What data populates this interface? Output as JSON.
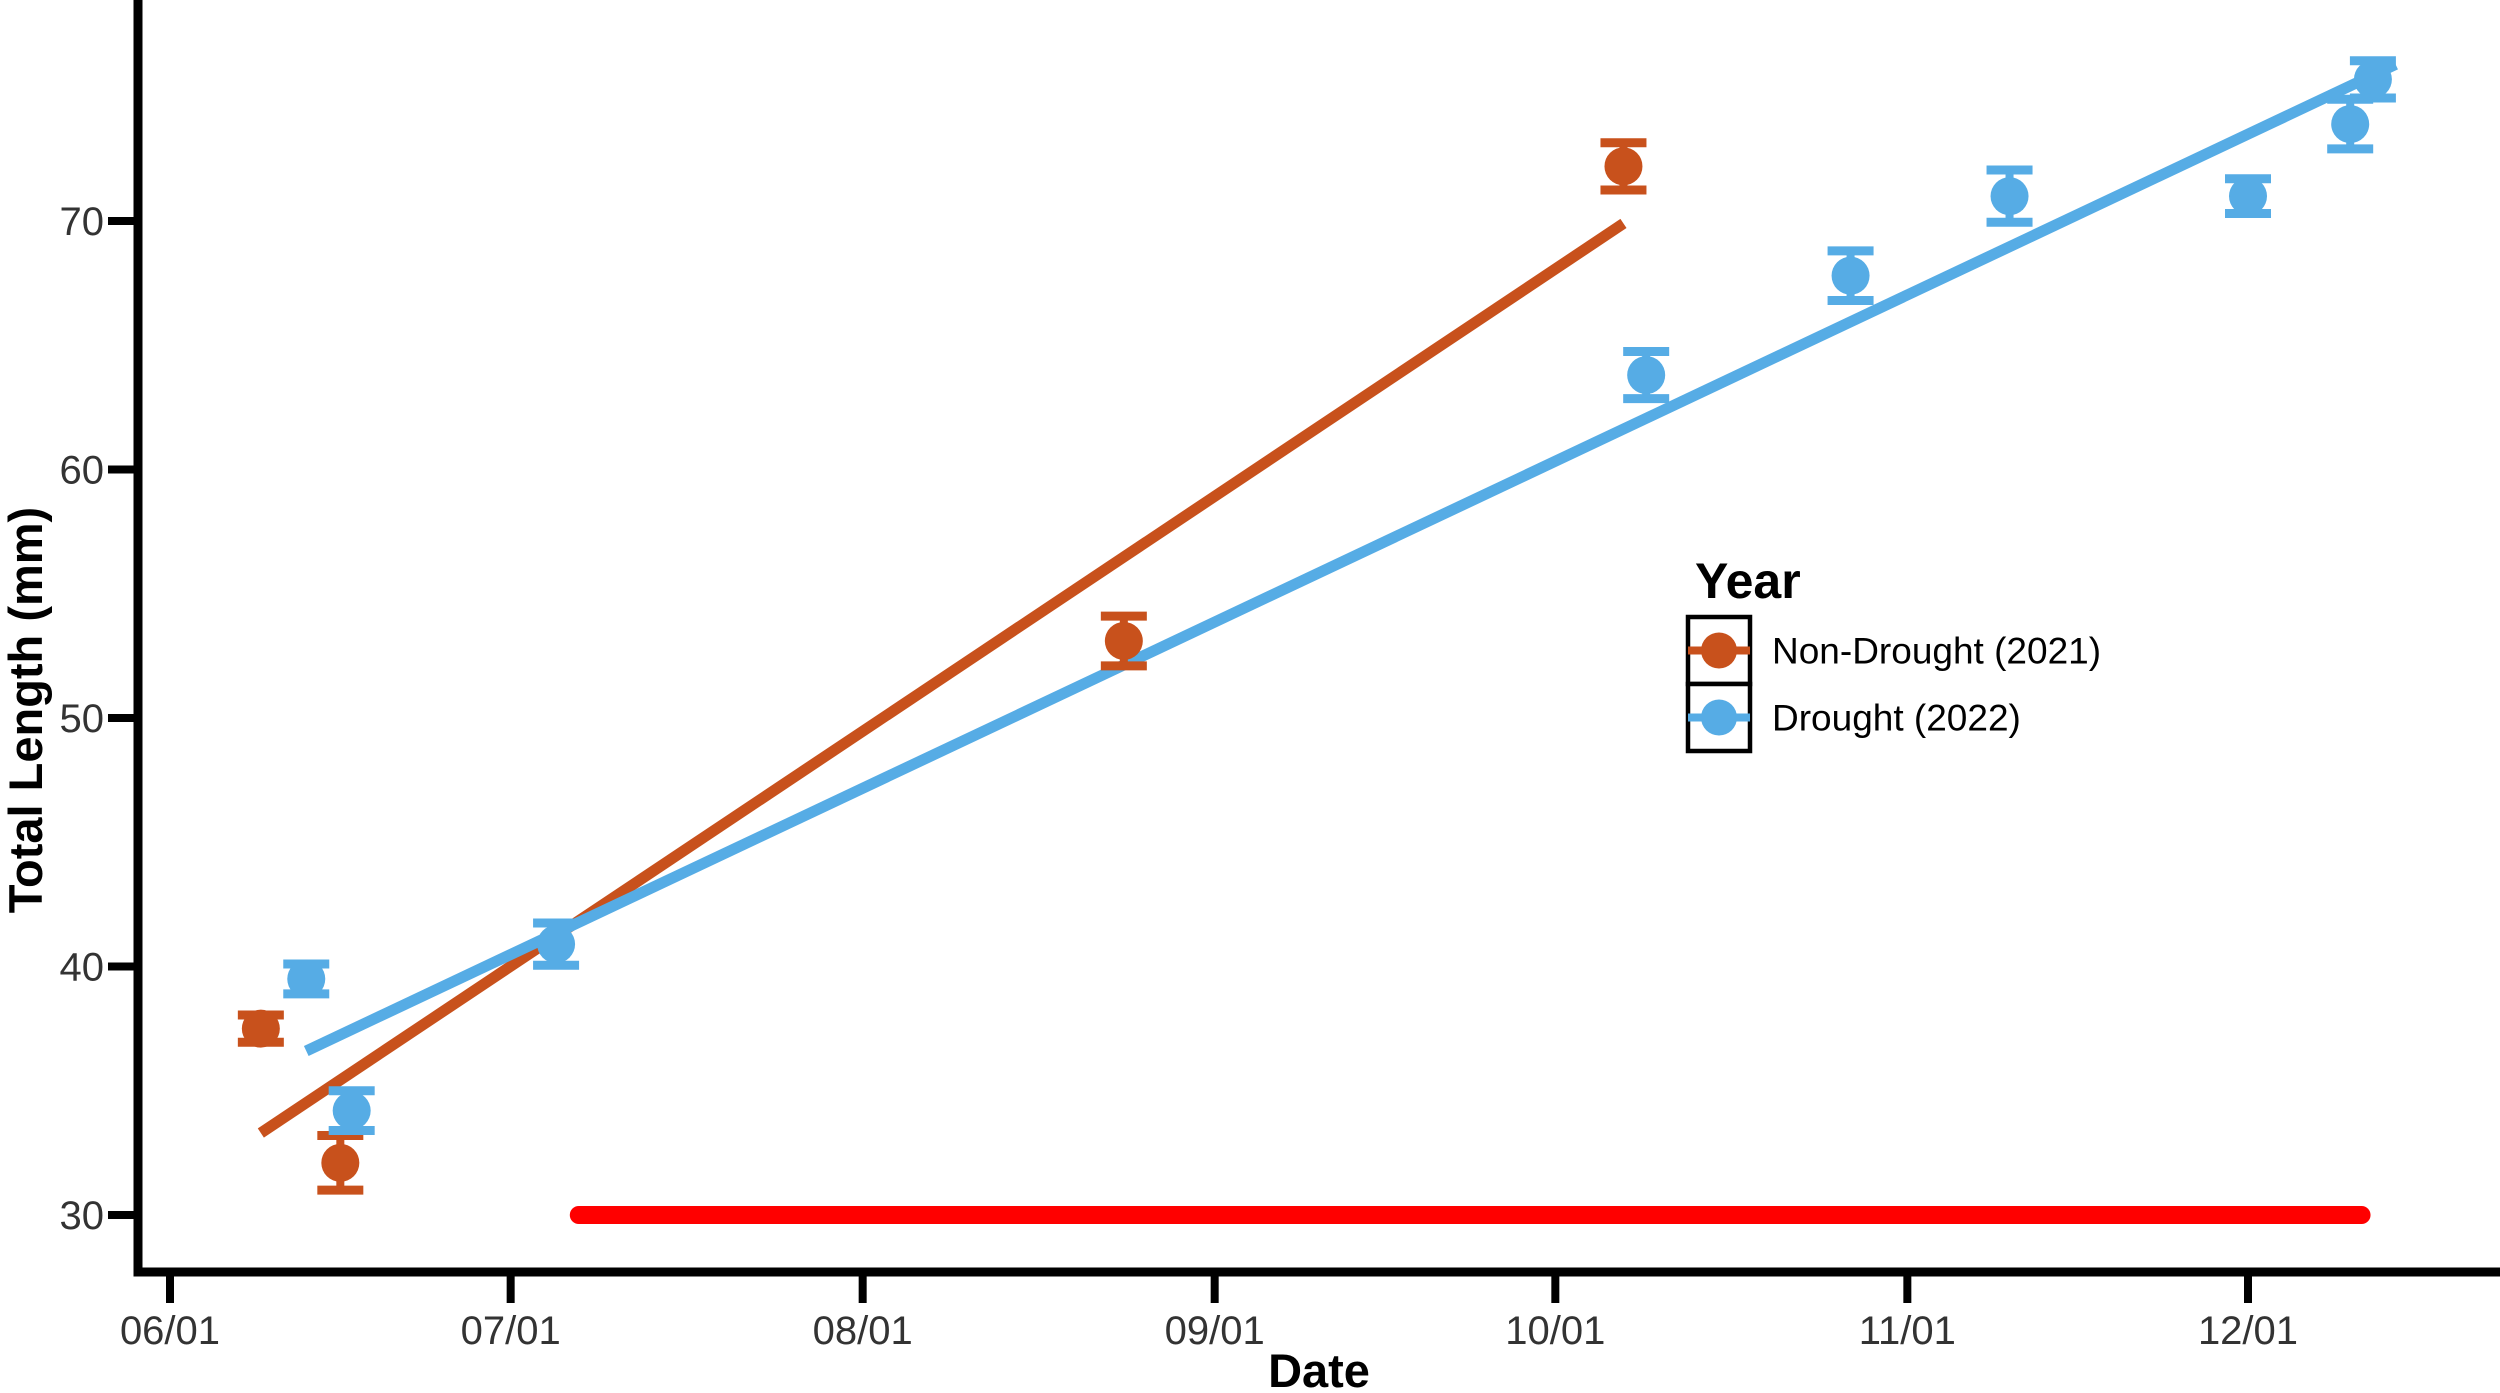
{
  "chart_data": {
    "type": "scatter",
    "title": "",
    "xlabel": "Date",
    "ylabel": "Total Length (mm)",
    "x_ticks": [
      "06/01",
      "07/01",
      "08/01",
      "09/01",
      "10/01",
      "11/01",
      "12/01"
    ],
    "y_ticks": [
      30,
      40,
      50,
      60,
      70
    ],
    "ylim": [
      27.5,
      78.5
    ],
    "xlim": [
      "05/29",
      "12/23"
    ],
    "grid": "off",
    "colors": {
      "non_drought": "#C8511C",
      "drought": "#56ACE5",
      "drought_bar": "#FF0000",
      "axis": "#000000",
      "tick_label": "#333333",
      "background": "#ffffff"
    },
    "legend": {
      "title": "Year",
      "position": "right-center",
      "entries": [
        {
          "label": "Non-Drought (2021)",
          "color": "#C8511C"
        },
        {
          "label": "Drought (2022)",
          "color": "#56ACE5"
        }
      ]
    },
    "series": [
      {
        "name": "Non-Drought (2021)",
        "color": "#C8511C",
        "points": [
          {
            "date": "06/09",
            "y": 37.5,
            "err": 0.55
          },
          {
            "date": "06/16",
            "y": 32.1,
            "err": 1.1
          },
          {
            "date": "08/24",
            "y": 53.1,
            "err": 1.0
          },
          {
            "date": "10/07",
            "y": 72.2,
            "err": 0.95
          }
        ],
        "trend": {
          "from": {
            "date": "06/09",
            "y": 33.3
          },
          "to": {
            "date": "10/07",
            "y": 69.9
          }
        }
      },
      {
        "name": "Drought (2022)",
        "color": "#56ACE5",
        "points": [
          {
            "date": "06/13",
            "y": 39.5,
            "err": 0.6
          },
          {
            "date": "06/17",
            "y": 34.2,
            "err": 0.8
          },
          {
            "date": "07/05",
            "y": 40.9,
            "err": 0.85
          },
          {
            "date": "10/09",
            "y": 63.8,
            "err": 0.95
          },
          {
            "date": "10/27",
            "y": 67.8,
            "err": 1.0
          },
          {
            "date": "11/10",
            "y": 71.0,
            "err": 1.05
          },
          {
            "date": "12/01",
            "y": 71.0,
            "err": 0.7
          },
          {
            "date": "12/10",
            "y": 73.9,
            "err": 1.0
          },
          {
            "date": "12/12",
            "y": 75.7,
            "err": 0.75
          }
        ],
        "trend": {
          "from": {
            "date": "06/13",
            "y": 36.6
          },
          "to": {
            "date": "12/14",
            "y": 76.3
          }
        }
      }
    ],
    "annotations": [
      {
        "type": "horizontal-bar",
        "name": "drought-period-bar",
        "color": "#FF0000",
        "y": 30,
        "from": "07/07",
        "to": "12/11"
      }
    ]
  }
}
